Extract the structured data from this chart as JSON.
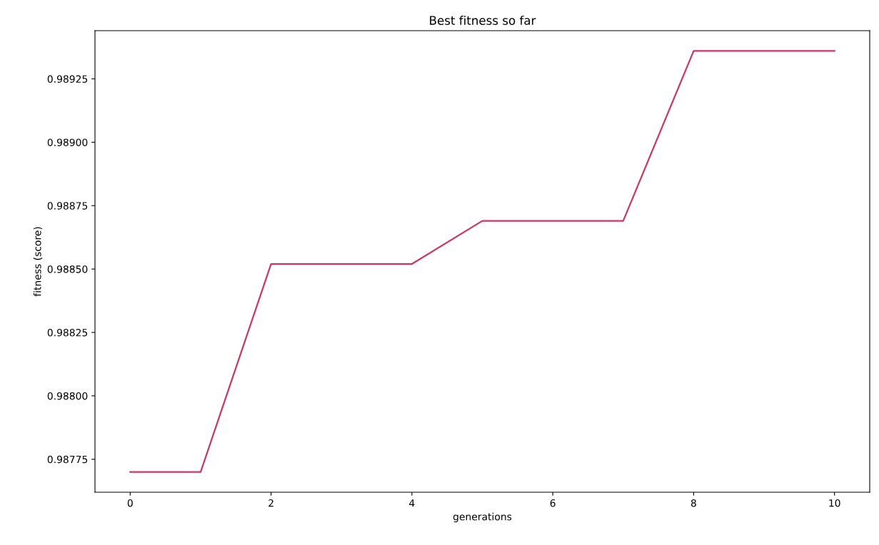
{
  "chart_data": {
    "type": "line",
    "title": "Best fitness so far",
    "xlabel": "generations",
    "ylabel": "fitness (score)",
    "x": [
      0,
      1,
      2,
      3,
      4,
      5,
      6,
      7,
      8,
      9,
      10
    ],
    "series": [
      {
        "color": "#d03560",
        "values": [
          0.9877,
          0.9877,
          0.98852,
          0.98852,
          0.98852,
          0.98869,
          0.98869,
          0.98869,
          0.98936,
          0.98936,
          0.98936
        ]
      }
    ],
    "xlim": [
      -0.5,
      10.5
    ],
    "xticks": [
      0,
      2,
      4,
      6,
      8,
      10
    ],
    "ylim": [
      0.98762,
      0.98944
    ],
    "yticks": [
      {
        "value": 0.98775,
        "label": "0.98775"
      },
      {
        "value": 0.988,
        "label": "0.98800"
      },
      {
        "value": 0.98825,
        "label": "0.98825"
      },
      {
        "value": 0.9885,
        "label": "0.98850"
      },
      {
        "value": 0.98875,
        "label": "0.98875"
      },
      {
        "value": 0.989,
        "label": "0.98900"
      },
      {
        "value": 0.98925,
        "label": "0.98925"
      }
    ],
    "grid": false,
    "marker": "none",
    "line_style": "solid"
  }
}
